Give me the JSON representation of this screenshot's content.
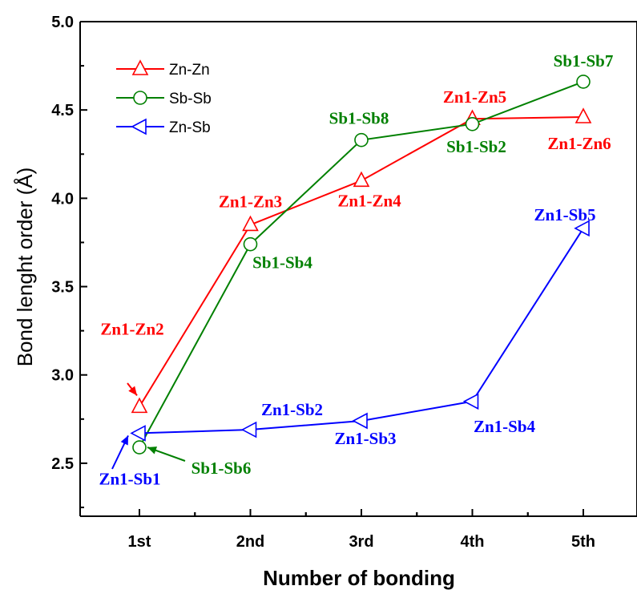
{
  "chart_data": {
    "type": "line",
    "xlabel": "Number of bonding",
    "ylabel": "Bond lenght order (Å)",
    "categories": [
      "1st",
      "2nd",
      "3rd",
      "4th",
      "5th"
    ],
    "ylim": [
      2.2,
      5.0
    ],
    "yticks": [
      "2.5",
      "3.0",
      "3.5",
      "4.0",
      "4.5",
      "5.0"
    ],
    "grid": false,
    "legend_position": "top-left",
    "series": [
      {
        "name": "Zn-Zn",
        "color": "#ff0000",
        "marker": "triangle-up",
        "values": [
          2.82,
          3.85,
          4.1,
          4.45,
          4.46
        ],
        "labels": [
          "Zn1-Zn2",
          "Zn1-Zn3",
          "Zn1-Zn4",
          "Zn1-Zn5",
          "Zn1-Zn6"
        ]
      },
      {
        "name": "Sb-Sb",
        "color": "#008000",
        "marker": "circle",
        "values": [
          2.59,
          3.74,
          4.33,
          4.42,
          4.66
        ],
        "labels": [
          "Sb1-Sb6",
          "Sb1-Sb4",
          "Sb1-Sb8",
          "Sb1-Sb2",
          "Sb1-Sb7"
        ]
      },
      {
        "name": "Zn-Sb",
        "color": "#0000ff",
        "marker": "triangle-left",
        "values": [
          2.67,
          2.69,
          2.74,
          2.85,
          3.83
        ],
        "labels": [
          "Zn1-Sb1",
          "Zn1-Sb2",
          "Zn1-Sb3",
          "Zn1-Sb4",
          "Zn1-Sb5"
        ]
      }
    ]
  }
}
